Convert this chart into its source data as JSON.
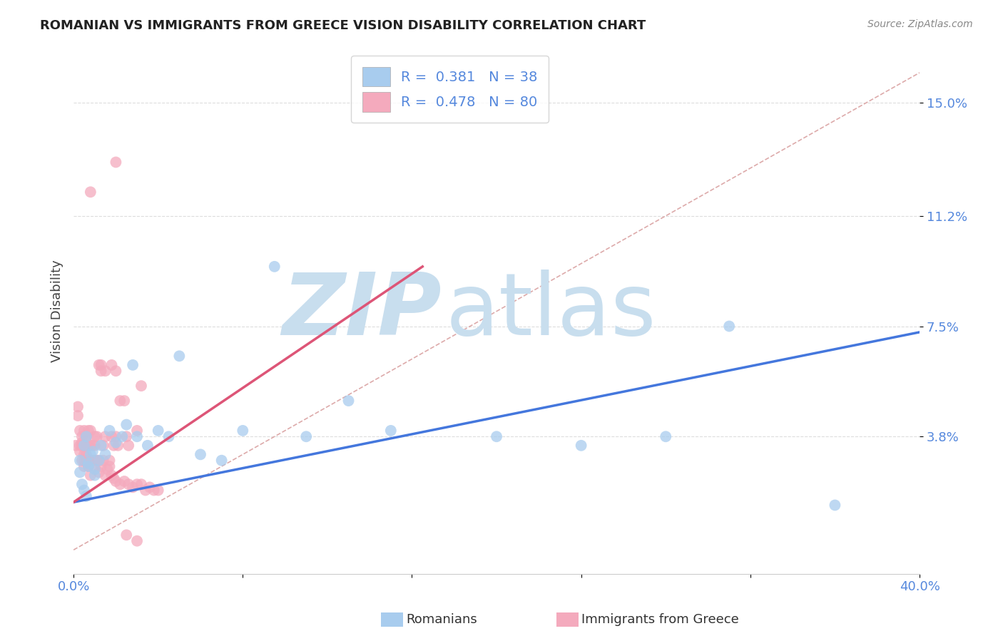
{
  "title": "ROMANIAN VS IMMIGRANTS FROM GREECE VISION DISABILITY CORRELATION CHART",
  "source": "Source: ZipAtlas.com",
  "ylabel": "Vision Disability",
  "xlim": [
    0.0,
    0.4
  ],
  "ylim": [
    -0.008,
    0.168
  ],
  "xticks": [
    0.0,
    0.08,
    0.16,
    0.24,
    0.32,
    0.4
  ],
  "xticklabels": [
    "0.0%",
    "",
    "",
    "",
    "",
    "40.0%"
  ],
  "ytick_positions": [
    0.038,
    0.075,
    0.112,
    0.15
  ],
  "yticklabels": [
    "3.8%",
    "7.5%",
    "11.2%",
    "15.0%"
  ],
  "blue_R": 0.381,
  "blue_N": 38,
  "pink_R": 0.478,
  "pink_N": 80,
  "blue_color": "#A8CCEE",
  "pink_color": "#F4AABD",
  "blue_line_color": "#4477DD",
  "pink_line_color": "#DD5577",
  "diagonal_color": "#DDAAAA",
  "legend_label_blue": "Romanians",
  "legend_label_pink": "Immigrants from Greece",
  "blue_scatter_x": [
    0.003,
    0.005,
    0.006,
    0.007,
    0.003,
    0.004,
    0.008,
    0.01,
    0.012,
    0.005,
    0.006,
    0.007,
    0.009,
    0.01,
    0.013,
    0.015,
    0.017,
    0.02,
    0.023,
    0.025,
    0.028,
    0.03,
    0.035,
    0.04,
    0.045,
    0.05,
    0.06,
    0.07,
    0.08,
    0.095,
    0.11,
    0.13,
    0.15,
    0.2,
    0.24,
    0.28,
    0.31,
    0.36
  ],
  "blue_scatter_y": [
    0.026,
    0.02,
    0.018,
    0.028,
    0.03,
    0.022,
    0.032,
    0.025,
    0.03,
    0.035,
    0.038,
    0.029,
    0.033,
    0.027,
    0.035,
    0.032,
    0.04,
    0.036,
    0.038,
    0.042,
    0.062,
    0.038,
    0.035,
    0.04,
    0.038,
    0.065,
    0.032,
    0.03,
    0.04,
    0.095,
    0.038,
    0.05,
    0.04,
    0.038,
    0.035,
    0.038,
    0.075,
    0.015
  ],
  "pink_scatter_x": [
    0.001,
    0.002,
    0.002,
    0.003,
    0.003,
    0.004,
    0.004,
    0.004,
    0.005,
    0.005,
    0.005,
    0.005,
    0.006,
    0.006,
    0.006,
    0.006,
    0.007,
    0.007,
    0.007,
    0.008,
    0.008,
    0.008,
    0.009,
    0.009,
    0.01,
    0.01,
    0.01,
    0.011,
    0.012,
    0.012,
    0.013,
    0.013,
    0.014,
    0.015,
    0.015,
    0.017,
    0.018,
    0.019,
    0.02,
    0.021,
    0.022,
    0.024,
    0.025,
    0.026,
    0.03,
    0.032,
    0.02,
    0.025,
    0.03,
    0.008,
    0.003,
    0.004,
    0.005,
    0.006,
    0.007,
    0.008,
    0.009,
    0.01,
    0.011,
    0.012,
    0.013,
    0.014,
    0.015,
    0.016,
    0.017,
    0.018,
    0.019,
    0.02,
    0.022,
    0.024,
    0.026,
    0.028,
    0.03,
    0.032,
    0.034,
    0.036,
    0.038,
    0.04,
    0.02,
    0.018
  ],
  "pink_scatter_y": [
    0.035,
    0.045,
    0.048,
    0.035,
    0.04,
    0.03,
    0.035,
    0.038,
    0.035,
    0.04,
    0.028,
    0.032,
    0.038,
    0.03,
    0.035,
    0.038,
    0.03,
    0.035,
    0.04,
    0.03,
    0.035,
    0.04,
    0.03,
    0.035,
    0.038,
    0.03,
    0.035,
    0.038,
    0.062,
    0.03,
    0.06,
    0.062,
    0.035,
    0.038,
    0.06,
    0.03,
    0.038,
    0.035,
    0.038,
    0.035,
    0.05,
    0.05,
    0.038,
    0.035,
    0.04,
    0.055,
    0.13,
    0.005,
    0.003,
    0.12,
    0.033,
    0.036,
    0.03,
    0.032,
    0.028,
    0.025,
    0.03,
    0.028,
    0.03,
    0.026,
    0.028,
    0.03,
    0.025,
    0.027,
    0.028,
    0.025,
    0.024,
    0.023,
    0.022,
    0.023,
    0.022,
    0.021,
    0.022,
    0.022,
    0.02,
    0.021,
    0.02,
    0.02,
    0.06,
    0.062
  ],
  "blue_line_x": [
    0.0,
    0.4
  ],
  "blue_line_y": [
    0.016,
    0.073
  ],
  "pink_line_x": [
    0.0,
    0.165
  ],
  "pink_line_y": [
    0.016,
    0.095
  ],
  "diagonal_line_x": [
    0.0,
    0.4
  ],
  "diagonal_line_y": [
    0.0,
    0.16
  ],
  "watermark_zip": "ZIP",
  "watermark_atlas": "atlas",
  "watermark_color": "#C8DEEE",
  "background_color": "#FFFFFF",
  "grid_color": "#DDDDDD"
}
